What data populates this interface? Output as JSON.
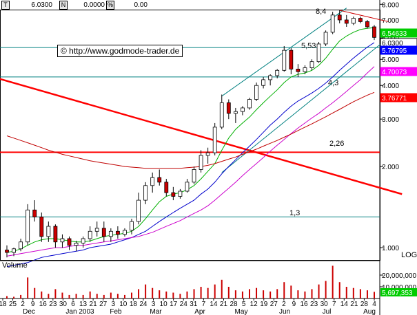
{
  "header": {
    "t_box": "T",
    "value1": "6.0300",
    "n_box": "N",
    "value2": "0.0000",
    "pct_box": "%",
    "value3": "0.00"
  },
  "watermark": "© http://www.godmode-trader.de",
  "volume_label": "Volume",
  "log_label": "LOG",
  "colors": {
    "price_tag_green": "#00cc00",
    "price_tag_white": "#ffffff",
    "price_tag_blue": "#0000ff",
    "price_tag_magenta": "#ff00ff",
    "price_tag_red": "#ff0000",
    "volume_tag": "#00cc00",
    "trend_red": "#ff0000",
    "channel_teal": "#008080",
    "ma_green": "#00b000",
    "ma_blue": "#0000cc",
    "ma_magenta": "#cc00cc",
    "ma_darkred": "#c00000",
    "candle": "#cc0000"
  },
  "chart_data": {
    "type": "line",
    "subtype": "candlestick-with-moving-averages",
    "scale": "log",
    "ylim": [
      0.9,
      8.3
    ],
    "y_ticks": [
      "8.000",
      "7.000",
      "6.000",
      "5.000",
      "4.000",
      "3.000",
      "2.000",
      "1.000"
    ],
    "y_tick_values": [
      8,
      7,
      6,
      5,
      4,
      3,
      2,
      1
    ],
    "x_tick_labels": [
      "18",
      "25",
      "2",
      "9",
      "16",
      "23",
      "30",
      "6",
      "13",
      "21",
      "27",
      "3",
      "10",
      "18",
      "24",
      "3",
      "10",
      "17",
      "24",
      "31",
      "7",
      "14",
      "21",
      "28",
      "5",
      "12",
      "19",
      "27",
      "2",
      "9",
      "16",
      "23",
      "30",
      "7",
      "14",
      "21",
      "28",
      "4"
    ],
    "month_labels": [
      "Dec",
      "Jan 2003",
      "Feb",
      "Mar",
      "Apr",
      "May",
      "Jun",
      "Jul",
      "Aug"
    ],
    "price_tags": [
      {
        "value": "6.54633",
        "color": "#00cc00",
        "text_color": "#ffffff"
      },
      {
        "value": "6.0300",
        "color": "#ffffff",
        "text_color": "#000000"
      },
      {
        "value": "5.76795",
        "color": "#0000ff",
        "text_color": "#ffffff"
      },
      {
        "value": "4.70073",
        "color": "#ff00ff",
        "text_color": "#ffffff"
      },
      {
        "value": "3.76771",
        "color": "#ff0000",
        "text_color": "#ffffff"
      }
    ],
    "horizontal_levels": [
      {
        "value": 8.4,
        "label": "8,4",
        "color": "#cc0000"
      },
      {
        "value": 5.53,
        "label": "5,53",
        "color": "#008080"
      },
      {
        "value": 4.3,
        "label": "4,3",
        "color": "#008080"
      },
      {
        "value": 2.26,
        "label": "2,26",
        "color": "#ff0000"
      },
      {
        "value": 1.3,
        "label": "1,3",
        "color": "#008080"
      }
    ],
    "candles": [
      {
        "x": 0,
        "o": 0.98,
        "h": 1.02,
        "l": 0.92,
        "c": 0.96
      },
      {
        "x": 1,
        "o": 0.96,
        "h": 1.0,
        "l": 0.93,
        "c": 0.99
      },
      {
        "x": 2,
        "o": 0.99,
        "h": 1.08,
        "l": 0.97,
        "c": 1.05
      },
      {
        "x": 3,
        "o": 1.05,
        "h": 1.45,
        "l": 1.02,
        "c": 1.38
      },
      {
        "x": 4,
        "o": 1.38,
        "h": 1.5,
        "l": 1.25,
        "c": 1.3
      },
      {
        "x": 5,
        "o": 1.3,
        "h": 1.35,
        "l": 1.05,
        "c": 1.1
      },
      {
        "x": 6,
        "o": 1.1,
        "h": 1.25,
        "l": 1.05,
        "c": 1.2
      },
      {
        "x": 7,
        "o": 1.2,
        "h": 1.22,
        "l": 1.0,
        "c": 1.05
      },
      {
        "x": 8,
        "o": 1.05,
        "h": 1.12,
        "l": 1.0,
        "c": 1.08
      },
      {
        "x": 9,
        "o": 1.08,
        "h": 1.1,
        "l": 0.98,
        "c": 1.02
      },
      {
        "x": 10,
        "o": 1.02,
        "h": 1.06,
        "l": 0.97,
        "c": 1.04
      },
      {
        "x": 11,
        "o": 1.04,
        "h": 1.1,
        "l": 1.0,
        "c": 1.08
      },
      {
        "x": 12,
        "o": 1.08,
        "h": 1.2,
        "l": 1.05,
        "c": 1.15
      },
      {
        "x": 13,
        "o": 1.15,
        "h": 1.25,
        "l": 1.1,
        "c": 1.18
      },
      {
        "x": 14,
        "o": 1.18,
        "h": 1.25,
        "l": 1.05,
        "c": 1.1
      },
      {
        "x": 15,
        "o": 1.1,
        "h": 1.18,
        "l": 1.05,
        "c": 1.15
      },
      {
        "x": 16,
        "o": 1.15,
        "h": 1.2,
        "l": 1.08,
        "c": 1.12
      },
      {
        "x": 17,
        "o": 1.12,
        "h": 1.18,
        "l": 1.1,
        "c": 1.16
      },
      {
        "x": 18,
        "o": 1.16,
        "h": 1.28,
        "l": 1.12,
        "c": 1.25
      },
      {
        "x": 19,
        "o": 1.25,
        "h": 1.6,
        "l": 1.22,
        "c": 1.5
      },
      {
        "x": 20,
        "o": 1.5,
        "h": 1.75,
        "l": 1.45,
        "c": 1.7
      },
      {
        "x": 21,
        "o": 1.7,
        "h": 1.9,
        "l": 1.6,
        "c": 1.82
      },
      {
        "x": 22,
        "o": 1.82,
        "h": 1.95,
        "l": 1.7,
        "c": 1.75
      },
      {
        "x": 23,
        "o": 1.75,
        "h": 1.8,
        "l": 1.55,
        "c": 1.6
      },
      {
        "x": 24,
        "o": 1.6,
        "h": 1.68,
        "l": 1.5,
        "c": 1.55
      },
      {
        "x": 25,
        "o": 1.55,
        "h": 1.65,
        "l": 1.52,
        "c": 1.62
      },
      {
        "x": 26,
        "o": 1.62,
        "h": 1.8,
        "l": 1.6,
        "c": 1.75
      },
      {
        "x": 27,
        "o": 1.75,
        "h": 2.0,
        "l": 1.72,
        "c": 1.95
      },
      {
        "x": 28,
        "o": 1.95,
        "h": 2.3,
        "l": 1.9,
        "c": 2.2
      },
      {
        "x": 29,
        "o": 2.2,
        "h": 2.35,
        "l": 2.05,
        "c": 2.25
      },
      {
        "x": 30,
        "o": 2.25,
        "h": 2.9,
        "l": 2.2,
        "c": 2.8
      },
      {
        "x": 31,
        "o": 2.8,
        "h": 3.7,
        "l": 2.75,
        "c": 3.45
      },
      {
        "x": 32,
        "o": 3.45,
        "h": 3.55,
        "l": 3.0,
        "c": 3.15
      },
      {
        "x": 33,
        "o": 3.15,
        "h": 3.3,
        "l": 2.9,
        "c": 3.2
      },
      {
        "x": 34,
        "o": 3.2,
        "h": 3.35,
        "l": 3.1,
        "c": 3.3
      },
      {
        "x": 35,
        "o": 3.3,
        "h": 3.6,
        "l": 3.25,
        "c": 3.55
      },
      {
        "x": 36,
        "o": 3.55,
        "h": 4.1,
        "l": 3.5,
        "c": 4.0
      },
      {
        "x": 37,
        "o": 4.0,
        "h": 4.3,
        "l": 3.9,
        "c": 4.2
      },
      {
        "x": 38,
        "o": 4.2,
        "h": 4.4,
        "l": 4.0,
        "c": 4.35
      },
      {
        "x": 39,
        "o": 4.35,
        "h": 4.6,
        "l": 4.25,
        "c": 4.55
      },
      {
        "x": 40,
        "o": 4.55,
        "h": 5.6,
        "l": 4.5,
        "c": 5.4
      },
      {
        "x": 41,
        "o": 5.4,
        "h": 5.5,
        "l": 4.4,
        "c": 4.6
      },
      {
        "x": 42,
        "o": 4.6,
        "h": 4.8,
        "l": 4.3,
        "c": 4.5
      },
      {
        "x": 43,
        "o": 4.5,
        "h": 4.75,
        "l": 4.4,
        "c": 4.65
      },
      {
        "x": 44,
        "o": 4.65,
        "h": 5.0,
        "l": 4.55,
        "c": 4.9
      },
      {
        "x": 45,
        "o": 4.9,
        "h": 5.8,
        "l": 4.85,
        "c": 5.7
      },
      {
        "x": 46,
        "o": 5.7,
        "h": 6.4,
        "l": 5.6,
        "c": 6.3
      },
      {
        "x": 47,
        "o": 6.3,
        "h": 7.5,
        "l": 6.2,
        "c": 7.3
      },
      {
        "x": 48,
        "o": 7.3,
        "h": 7.6,
        "l": 6.8,
        "c": 7.0
      },
      {
        "x": 49,
        "o": 7.0,
        "h": 7.3,
        "l": 6.6,
        "c": 6.8
      },
      {
        "x": 50,
        "o": 6.8,
        "h": 7.2,
        "l": 6.7,
        "c": 7.1
      },
      {
        "x": 51,
        "o": 7.1,
        "h": 7.2,
        "l": 6.8,
        "c": 6.9
      },
      {
        "x": 52,
        "o": 6.9,
        "h": 7.0,
        "l": 6.5,
        "c": 6.6
      },
      {
        "x": 53,
        "o": 6.6,
        "h": 6.7,
        "l": 5.9,
        "c": 6.03
      }
    ],
    "moving_averages": [
      {
        "name": "",
        "color": "#00b000",
        "values": [
          0.96,
          0.97,
          0.99,
          1.02,
          1.05,
          1.07,
          1.08,
          1.08,
          1.07,
          1.06,
          1.05,
          1.05,
          1.06,
          1.08,
          1.1,
          1.11,
          1.12,
          1.13,
          1.15,
          1.2,
          1.28,
          1.38,
          1.48,
          1.55,
          1.58,
          1.6,
          1.64,
          1.7,
          1.8,
          1.92,
          2.05,
          2.3,
          2.55,
          2.75,
          2.9,
          3.05,
          3.25,
          3.45,
          3.65,
          3.85,
          4.1,
          4.3,
          4.4,
          4.45,
          4.55,
          4.75,
          5.05,
          5.45,
          5.85,
          6.1,
          6.3,
          6.45,
          6.52,
          6.55
        ]
      },
      {
        "name": "",
        "color": "#0000cc",
        "values": [
          0.85,
          0.86,
          0.87,
          0.88,
          0.9,
          0.92,
          0.93,
          0.94,
          0.95,
          0.96,
          0.97,
          0.98,
          1.0,
          1.01,
          1.02,
          1.03,
          1.05,
          1.07,
          1.09,
          1.12,
          1.15,
          1.2,
          1.25,
          1.3,
          1.35,
          1.4,
          1.45,
          1.5,
          1.58,
          1.65,
          1.75,
          1.88,
          2.0,
          2.12,
          2.25,
          2.38,
          2.52,
          2.68,
          2.85,
          3.0,
          3.18,
          3.35,
          3.5,
          3.62,
          3.75,
          3.9,
          4.08,
          4.3,
          4.55,
          4.8,
          5.05,
          5.3,
          5.55,
          5.77
        ]
      },
      {
        "name": "",
        "color": "#cc00cc",
        "values": [
          0.93,
          0.94,
          0.95,
          0.96,
          0.97,
          0.98,
          0.99,
          1.0,
          1.0,
          1.01,
          1.02,
          1.02,
          1.03,
          1.04,
          1.05,
          1.06,
          1.07,
          1.08,
          1.09,
          1.1,
          1.12,
          1.14,
          1.17,
          1.2,
          1.23,
          1.26,
          1.3,
          1.34,
          1.38,
          1.43,
          1.5,
          1.58,
          1.66,
          1.75,
          1.85,
          1.95,
          2.05,
          2.16,
          2.28,
          2.4,
          2.52,
          2.65,
          2.78,
          2.9,
          3.03,
          3.15,
          3.3,
          3.45,
          3.62,
          3.8,
          4.0,
          4.2,
          4.45,
          4.7
        ]
      },
      {
        "name": "",
        "color": "#c00000",
        "values": [
          2.6,
          2.55,
          2.5,
          2.45,
          2.4,
          2.35,
          2.3,
          2.26,
          2.22,
          2.19,
          2.16,
          2.13,
          2.1,
          2.08,
          2.06,
          2.04,
          2.02,
          2.0,
          1.99,
          1.98,
          1.97,
          1.97,
          1.97,
          1.97,
          1.97,
          1.97,
          1.98,
          1.99,
          2.0,
          2.02,
          2.05,
          2.09,
          2.13,
          2.17,
          2.22,
          2.27,
          2.32,
          2.38,
          2.44,
          2.5,
          2.57,
          2.64,
          2.72,
          2.8,
          2.88,
          2.97,
          3.06,
          3.16,
          3.26,
          3.37,
          3.48,
          3.58,
          3.68,
          3.77
        ]
      }
    ],
    "trendlines": [
      {
        "color": "#ff0000",
        "from": {
          "x": -2,
          "y": 4.3
        },
        "to": {
          "x": 57,
          "y": 1.58
        }
      },
      {
        "color": "#008080",
        "from": {
          "x": 31,
          "y": 3.65
        },
        "to": {
          "x": 49,
          "y": 7.75
        }
      },
      {
        "color": "#008080",
        "from": {
          "x": 31,
          "y": 1.9
        },
        "to": {
          "x": 55,
          "y": 6.0
        }
      },
      {
        "color": "#cc0000",
        "from": {
          "x": 48,
          "y": 7.6
        },
        "to": {
          "x": 55,
          "y": 6.9
        }
      }
    ],
    "volume": {
      "y_ticks": [
        "20,000,000",
        "10,000,000"
      ],
      "y_tick_values": [
        20000000,
        10000000
      ],
      "ymax": 30000000,
      "last_value": "5,697,353",
      "values": [
        2000000.0,
        1500000.0,
        3000000.0,
        18000000.0,
        9000000.0,
        6000000.0,
        4000000.0,
        8000000.0,
        5000000.0,
        3000000.0,
        4000000.0,
        3000000.0,
        6000000.0,
        4000000.0,
        3000000.0,
        5000000.0,
        4000000.0,
        3000000.0,
        5000000.0,
        8000000.0,
        12000000.0,
        9000000.0,
        7000000.0,
        6000000.0,
        5000000.0,
        4000000.0,
        6000000.0,
        8000000.0,
        10000000.0,
        9000000.0,
        12000000.0,
        16000000.0,
        10000000.0,
        7000000.0,
        6000000.0,
        8000000.0,
        9000000.0,
        7000000.0,
        6000000.0,
        8000000.0,
        14000000.0,
        11000000.0,
        7000000.0,
        6000000.0,
        8000000.0,
        12000000.0,
        15000000.0,
        28000000.0,
        14000000.0,
        10000000.0,
        9000000.0,
        8000000.0,
        7000000.0,
        5700000.0
      ]
    }
  }
}
